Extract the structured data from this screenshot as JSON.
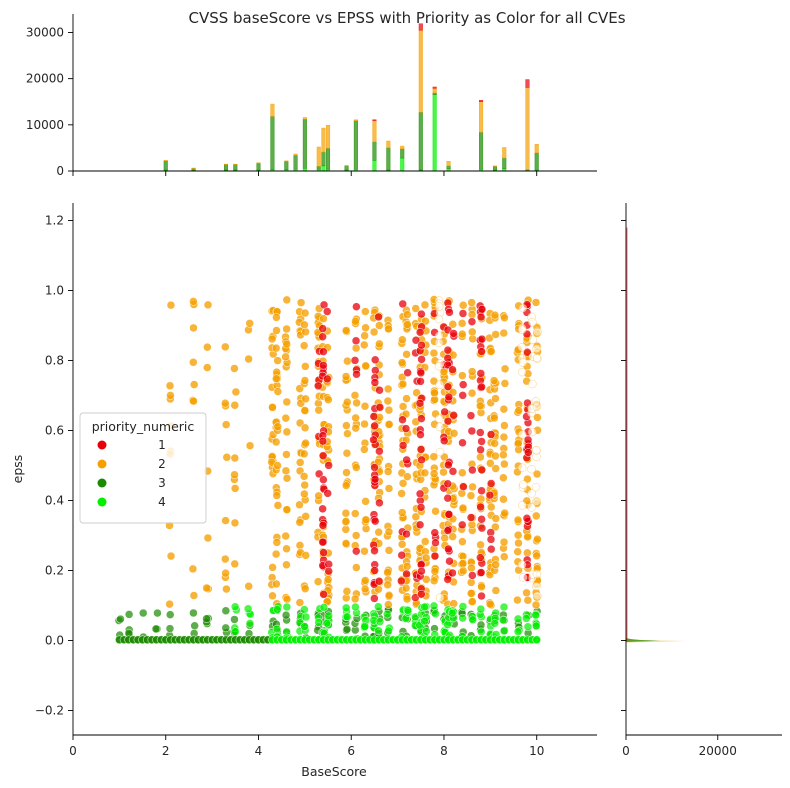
{
  "chart_data": {
    "type": "scatter",
    "title": "CVSS baseScore vs EPSS with Priority as Color for all CVEs",
    "xlabel": "BaseScore",
    "ylabel": "epss",
    "xlim": [
      0,
      11.3
    ],
    "ylim": [
      -0.27,
      1.25
    ],
    "x_ticks": [
      "0",
      "2",
      "4",
      "6",
      "8",
      "10"
    ],
    "y_ticks": [
      "−0.2",
      "0.0",
      "0.2",
      "0.4",
      "0.6",
      "0.8",
      "1.0",
      "1.2"
    ],
    "grid": false,
    "legend": {
      "title": "priority_numeric",
      "placement": "center-left",
      "entries": [
        {
          "label": "1",
          "color": "#e8000b"
        },
        {
          "label": "2",
          "color": "#f59f00"
        },
        {
          "label": "3",
          "color": "#1a8a00"
        },
        {
          "label": "4",
          "color": "#00f000"
        }
      ]
    },
    "columns": [
      1.0,
      1.2,
      1.5,
      1.8,
      2.1,
      2.6,
      2.9,
      3.3,
      3.5,
      3.8,
      4.3,
      4.4,
      4.6,
      4.9,
      5.0,
      5.3,
      5.4,
      5.5,
      5.9,
      6.1,
      6.3,
      6.5,
      6.6,
      6.8,
      7.1,
      7.2,
      7.4,
      7.5,
      7.6,
      7.8,
      8.0,
      8.1,
      8.2,
      8.4,
      8.6,
      8.8,
      9.0,
      9.1,
      9.3,
      9.6,
      9.8,
      10.0
    ],
    "max_epss": 0.975,
    "marginal_top": {
      "yticks": [
        "0",
        "10000",
        "20000",
        "30000"
      ],
      "ylim": [
        0,
        34000
      ],
      "bars": [
        {
          "x": 2.0,
          "p1": 0,
          "p2": 100,
          "p3": 2000,
          "p4": 200
        },
        {
          "x": 2.6,
          "p1": 0,
          "p2": 50,
          "p3": 500,
          "p4": 100
        },
        {
          "x": 3.3,
          "p1": 0,
          "p2": 100,
          "p3": 1200,
          "p4": 200
        },
        {
          "x": 3.5,
          "p1": 0,
          "p2": 100,
          "p3": 1200,
          "p4": 200
        },
        {
          "x": 4.0,
          "p1": 0,
          "p2": 100,
          "p3": 1500,
          "p4": 200
        },
        {
          "x": 4.3,
          "p1": 0,
          "p2": 2700,
          "p3": 11500,
          "p4": 300
        },
        {
          "x": 4.6,
          "p1": 0,
          "p2": 100,
          "p3": 1800,
          "p4": 300
        },
        {
          "x": 4.8,
          "p1": 0,
          "p2": 300,
          "p3": 3000,
          "p4": 400
        },
        {
          "x": 5.0,
          "p1": 0,
          "p2": 400,
          "p3": 10600,
          "p4": 600
        },
        {
          "x": 5.3,
          "p1": 0,
          "p2": 4200,
          "p3": 600,
          "p4": 400
        },
        {
          "x": 5.4,
          "p1": 0,
          "p2": 5200,
          "p3": 3000,
          "p4": 1100
        },
        {
          "x": 5.5,
          "p1": 0,
          "p2": 5000,
          "p3": 4500,
          "p4": 400
        },
        {
          "x": 5.9,
          "p1": 0,
          "p2": 100,
          "p3": 900,
          "p4": 200
        },
        {
          "x": 6.1,
          "p1": 0,
          "p2": 200,
          "p3": 10500,
          "p4": 400
        },
        {
          "x": 6.5,
          "p1": 200,
          "p2": 4600,
          "p3": 4000,
          "p4": 2300
        },
        {
          "x": 6.8,
          "p1": 0,
          "p2": 1500,
          "p3": 4800,
          "p4": 200
        },
        {
          "x": 7.1,
          "p1": 0,
          "p2": 600,
          "p3": 2000,
          "p4": 2800
        },
        {
          "x": 7.5,
          "p1": 1400,
          "p2": 17800,
          "p3": 12500,
          "p4": 200
        },
        {
          "x": 7.8,
          "p1": 300,
          "p2": 1000,
          "p3": 400,
          "p4": 16500
        },
        {
          "x": 8.1,
          "p1": 0,
          "p2": 1000,
          "p3": 600,
          "p4": 500
        },
        {
          "x": 8.8,
          "p1": 300,
          "p2": 6600,
          "p3": 8000,
          "p4": 400
        },
        {
          "x": 9.1,
          "p1": 0,
          "p2": 100,
          "p3": 800,
          "p4": 200
        },
        {
          "x": 9.3,
          "p1": 0,
          "p2": 2300,
          "p3": 2300,
          "p4": 500
        },
        {
          "x": 9.8,
          "p1": 1700,
          "p2": 17800,
          "p3": 300,
          "p4": 0
        },
        {
          "x": 10.0,
          "p1": 0,
          "p2": 1900,
          "p3": 3700,
          "p4": 200
        }
      ]
    },
    "marginal_right": {
      "xticks": [
        "0",
        "20000"
      ],
      "xlim": [
        0,
        34000
      ]
    }
  }
}
